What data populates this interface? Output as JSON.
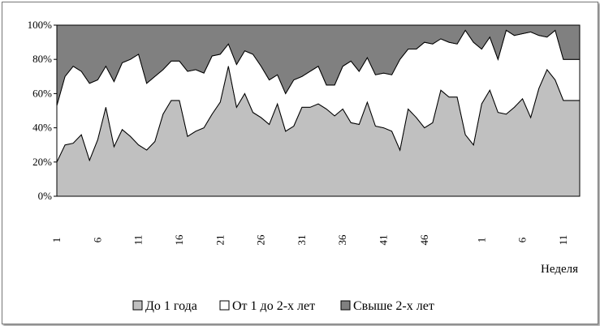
{
  "chart_data": {
    "type": "area",
    "stacked": "percent",
    "xlabel": "Неделя",
    "ylabel": "",
    "ylim": [
      0,
      100
    ],
    "y_ticks": [
      "0%",
      "20%",
      "40%",
      "60%",
      "80%",
      "100%"
    ],
    "x_tick_labels": [
      "1",
      "6",
      "11",
      "16",
      "21",
      "26",
      "31",
      "36",
      "41",
      "46",
      "1",
      "6",
      "11"
    ],
    "x_tick_weeks": [
      1,
      6,
      11,
      16,
      21,
      26,
      31,
      36,
      41,
      46,
      53,
      58,
      63
    ],
    "weeks_count": 65,
    "legend_position": "bottom",
    "grid": false,
    "colors": {
      "series1": "#c0c0c0",
      "series2": "#ffffff",
      "series3": "#808080",
      "stroke": "#000000"
    },
    "series": [
      {
        "name": "До 1 года",
        "cumulative_top": [
          20,
          30,
          31,
          36,
          21,
          33,
          52,
          29,
          39,
          35,
          30,
          27,
          32,
          48,
          56,
          56,
          35,
          38,
          40,
          48,
          55,
          76,
          52,
          60,
          49,
          46,
          42,
          54,
          38,
          41,
          52,
          52,
          54,
          51,
          47,
          51,
          43,
          42,
          55,
          41,
          40,
          38,
          27,
          51,
          46,
          40,
          43,
          62,
          58,
          58,
          36,
          30,
          54,
          62,
          49,
          48,
          52,
          57,
          46,
          63,
          74,
          68,
          56,
          56,
          56
        ]
      },
      {
        "name": "От 1 до 2-х лет",
        "cumulative_top": [
          53,
          70,
          76,
          73,
          66,
          68,
          76,
          67,
          78,
          80,
          83,
          66,
          70,
          74,
          79,
          79,
          73,
          74,
          72,
          82,
          83,
          89,
          77,
          85,
          83,
          76,
          68,
          71,
          60,
          68,
          70,
          73,
          76,
          65,
          65,
          76,
          79,
          73,
          81,
          71,
          72,
          71,
          80,
          86,
          86,
          90,
          89,
          92,
          90,
          89,
          97,
          90,
          86,
          93,
          80,
          97,
          94,
          95,
          96,
          94,
          93,
          97,
          80,
          80,
          80
        ]
      },
      {
        "name": "Свыше 2-х лет",
        "cumulative_top": [
          100,
          100,
          100,
          100,
          100,
          100,
          100,
          100,
          100,
          100,
          100,
          100,
          100,
          100,
          100,
          100,
          100,
          100,
          100,
          100,
          100,
          100,
          100,
          100,
          100,
          100,
          100,
          100,
          100,
          100,
          100,
          100,
          100,
          100,
          100,
          100,
          100,
          100,
          100,
          100,
          100,
          100,
          100,
          100,
          100,
          100,
          100,
          100,
          100,
          100,
          100,
          100,
          100,
          100,
          100,
          100,
          100,
          100,
          100,
          100,
          100,
          100,
          100,
          100,
          100
        ]
      }
    ]
  }
}
